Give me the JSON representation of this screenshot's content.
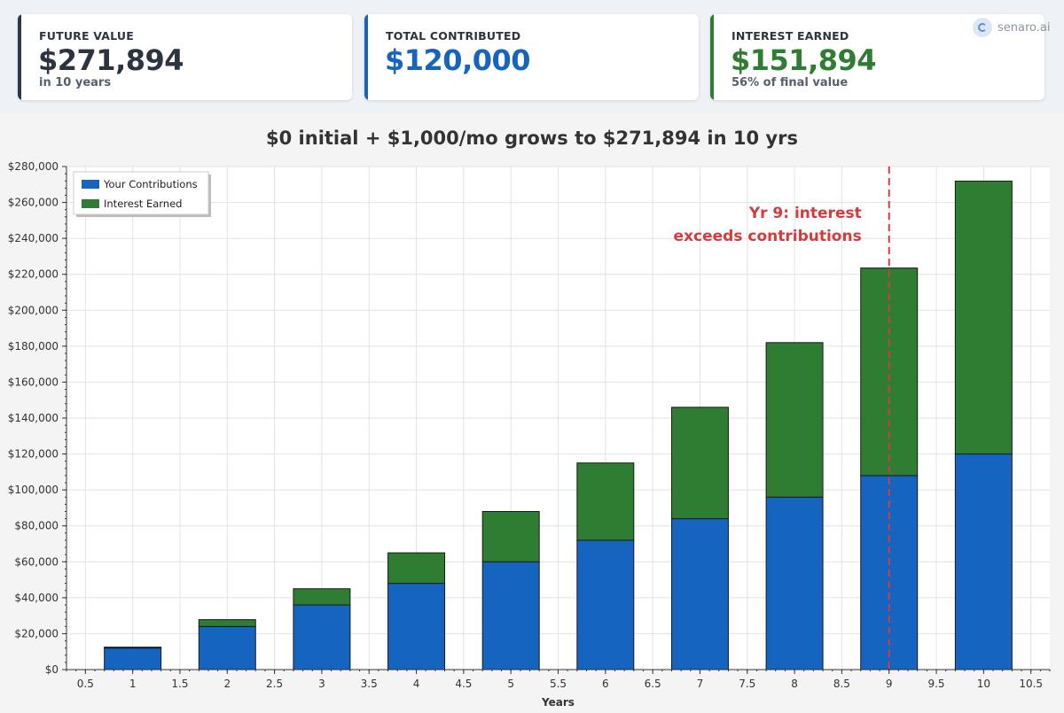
{
  "summary": {
    "future_value": {
      "label": "FUTURE VALUE",
      "value": "$271,894",
      "sub": "in 10 years",
      "color": "#2b3440",
      "accent": "#2b3a4a"
    },
    "total_contributed": {
      "label": "TOTAL CONTRIBUTED",
      "value": "$120,000",
      "color": "#1565c0",
      "accent": "#1565c0"
    },
    "interest_earned": {
      "label": "INTEREST EARNED",
      "value": "$151,894",
      "sub": "56% of final value",
      "color": "#2e7d32",
      "accent": "#2e7d32"
    }
  },
  "brand": {
    "name": "senaro.ai",
    "icon": "senaro-logo-icon"
  },
  "chart_data": {
    "type": "bar",
    "stacked": true,
    "title": "$0 initial + $1,000/mo grows to $271,894 in 10 yrs",
    "xlabel": "Years",
    "ylabel": "",
    "x": [
      1,
      2,
      3,
      4,
      5,
      6,
      7,
      8,
      9,
      10
    ],
    "series": [
      {
        "name": "Your Contributions",
        "color": "#1565c0",
        "values": [
          12000,
          24000,
          36000,
          48000,
          60000,
          72000,
          84000,
          96000,
          108000,
          120000
        ]
      },
      {
        "name": "Interest Earned",
        "color": "#2e7d32",
        "values": [
          500,
          3800,
          9000,
          17000,
          28000,
          43000,
          62000,
          86000,
          115500,
          151894
        ]
      }
    ],
    "xlim": [
      0.3,
      10.7
    ],
    "ylim": [
      0,
      280000
    ],
    "xticks": [
      "0.5",
      "1",
      "1.5",
      "2",
      "2.5",
      "3",
      "3.5",
      "4",
      "4.5",
      "5",
      "5.5",
      "6",
      "6.5",
      "7",
      "7.5",
      "8",
      "8.5",
      "9",
      "9.5",
      "10",
      "10.5"
    ],
    "xtick_values": [
      0.5,
      1,
      1.5,
      2,
      2.5,
      3,
      3.5,
      4,
      4.5,
      5,
      5.5,
      6,
      6.5,
      7,
      7.5,
      8,
      8.5,
      9,
      9.5,
      10,
      10.5
    ],
    "yticks": [
      "$0",
      "$20,000",
      "$40,000",
      "$60,000",
      "$80,000",
      "$100,000",
      "$120,000",
      "$140,000",
      "$160,000",
      "$180,000",
      "$200,000",
      "$220,000",
      "$240,000",
      "$260,000",
      "$280,000"
    ],
    "ytick_values": [
      0,
      20000,
      40000,
      60000,
      80000,
      100000,
      120000,
      140000,
      160000,
      180000,
      200000,
      220000,
      240000,
      260000,
      280000
    ],
    "grid": true,
    "legend_position": "top-left",
    "annotation": {
      "x": 9,
      "lines": [
        "Yr 9: interest",
        "exceeds contributions"
      ],
      "color": "#d23c3c"
    }
  }
}
